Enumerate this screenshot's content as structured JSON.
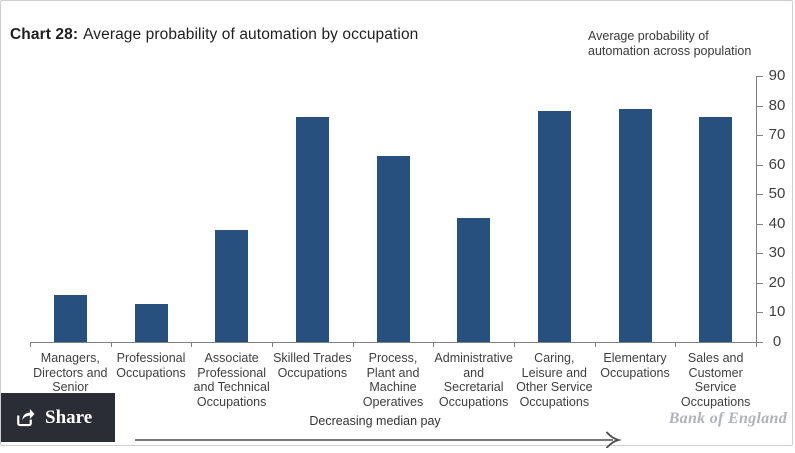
{
  "chart_data": {
    "type": "bar",
    "title": "Chart 28: Average probability of automation by occupation",
    "title_prefix": "Chart 28:",
    "title_rest": "Average probability of automation by occupation",
    "axis_note": "Average probability of automation across population",
    "axis_note_lines": [
      "Average probability of",
      "automation across population"
    ],
    "categories": [
      "Managers, Directors and Senior",
      "Professional Occupations",
      "Associate Professional and Technical Occupations",
      "Skilled Trades Occupations",
      "Process, Plant and Machine Operatives",
      "Administrative and Secretarial Occupations",
      "Caring, Leisure and Other Service Occupations",
      "Elementary Occupations",
      "Sales and Customer Service Occupations"
    ],
    "categories_wrapped": [
      "Managers,\nDirectors and\nSenior",
      "Professional\nOccupations",
      "Associate\nProfessional\nand Technical\nOccupations",
      "Skilled Trades\nOccupations",
      "Process,\nPlant and\nMachine\nOperatives",
      "Administrative\nand\nSecretarial\nOccupations",
      "Caring,\nLeisure and\nOther Service\nOccupations",
      "Elementary\nOccupations",
      "Sales and\nCustomer\nService\nOccupations"
    ],
    "values": [
      16,
      13,
      38,
      76,
      63,
      42,
      78,
      79,
      76
    ],
    "ylim": [
      0,
      90
    ],
    "ytick_interval": 10,
    "ytick_labels": [
      "0",
      "10",
      "20",
      "30",
      "40",
      "50",
      "60",
      "70",
      "80",
      "90"
    ],
    "yaxis_side": "right",
    "grid": false,
    "legend_position": "none",
    "xlabel_annotation": "Decreasing median pay"
  },
  "footer": {
    "brand": "Bank of England",
    "share_label": "Share"
  },
  "colors": {
    "bar": "#27507E",
    "axis": "#808080",
    "tick_text": "#3f3f3f",
    "title_text": "#1f1f1f",
    "arrow": "#4d4d4d",
    "brand_text": "#b0b3ba",
    "frame_border": "#cfcfcf",
    "share_bg": "#2a2d33",
    "share_text": "#ffffff"
  }
}
